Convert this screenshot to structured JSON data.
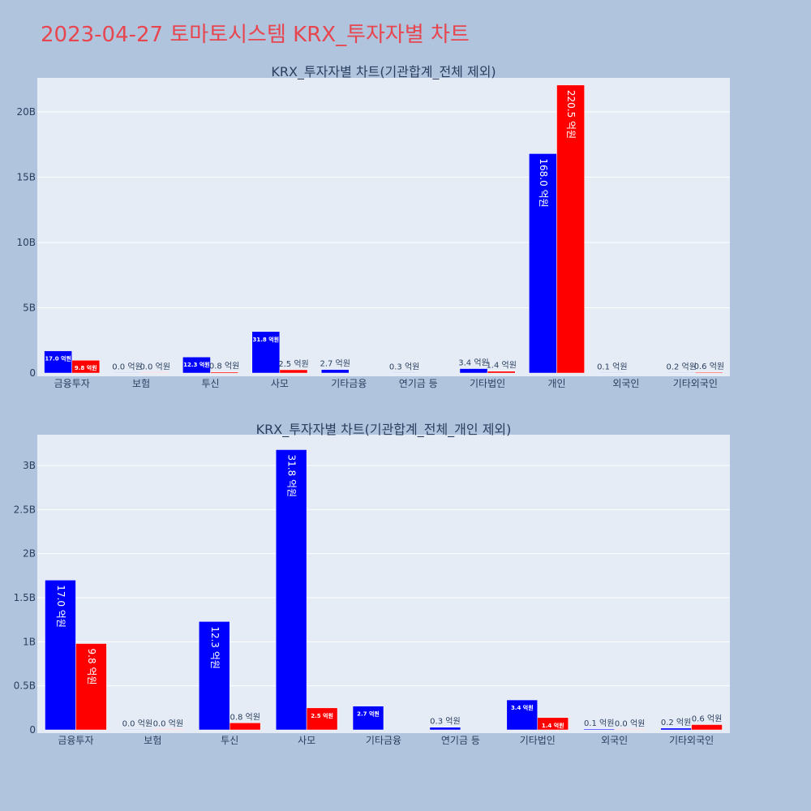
{
  "page_title": "2023-04-27 토마토시스템 KRX_투자자별 차트",
  "colors": {
    "series1": "#0000ff",
    "series2": "#ff0000",
    "plot_bg": "#e5ecf6",
    "title": "#e8464f"
  },
  "chart_data": [
    {
      "type": "bar",
      "title": "KRX_투자자별 차트(기관합계_전체 제외)",
      "categories": [
        "금융투자",
        "보험",
        "투신",
        "사모",
        "기타금융",
        "연기금 등",
        "기타법인",
        "개인",
        "외국인",
        "기타외국인"
      ],
      "series": [
        {
          "color": "#0000ff",
          "values": [
            1.7,
            0.0,
            1.23,
            3.18,
            0.27,
            0.03,
            0.34,
            16.8,
            0.01,
            0.02
          ],
          "labels": [
            "17.0 억원",
            "0.0 억원",
            "12.3 억원",
            "31.8 억원",
            "2.7 억원",
            "0.3 억원",
            "3.4 억원",
            "168.0 억원",
            "0.1 억원",
            "0.2 억원"
          ]
        },
        {
          "color": "#ff0000",
          "values": [
            0.98,
            0.0,
            0.08,
            0.25,
            null,
            null,
            0.14,
            22.05,
            null,
            0.06
          ],
          "labels": [
            "9.8 억원",
            "0.0 억원",
            "0.8 억원",
            "2.5 억원",
            "",
            "",
            "1.4 억원",
            "220.5 억원",
            "",
            "0.6 억원"
          ]
        }
      ],
      "yticks": [
        0,
        5,
        10,
        15,
        20
      ],
      "ytick_labels": [
        "0",
        "5B",
        "10B",
        "15B",
        "20B"
      ],
      "ylim": [
        0,
        22.6
      ],
      "grid": true
    },
    {
      "type": "bar",
      "title": "KRX_투자자별 차트(기관합계_전체_개인 제외)",
      "categories": [
        "금융투자",
        "보험",
        "투신",
        "사모",
        "기타금융",
        "연기금 등",
        "기타법인",
        "외국인",
        "기타외국인"
      ],
      "series": [
        {
          "color": "#0000ff",
          "values": [
            1.7,
            0.0,
            1.23,
            3.18,
            0.27,
            0.03,
            0.34,
            0.01,
            0.02
          ],
          "labels": [
            "17.0 억원",
            "0.0 억원",
            "12.3 억원",
            "31.8 억원",
            "2.7 억원",
            "0.3 억원",
            "3.4 억원",
            "0.1 억원",
            "0.2 억원"
          ]
        },
        {
          "color": "#ff0000",
          "values": [
            0.98,
            0.0,
            0.08,
            0.25,
            null,
            null,
            0.14,
            0.0,
            0.06
          ],
          "labels": [
            "9.8 억원",
            "0.0 억원",
            "0.8 억원",
            "2.5 억원",
            "",
            "",
            "1.4 억원",
            "0.0 억원",
            "0.6 억원"
          ]
        }
      ],
      "yticks": [
        0,
        0.5,
        1,
        1.5,
        2,
        2.5,
        3
      ],
      "ytick_labels": [
        "0",
        "0.5B",
        "1B",
        "1.5B",
        "2B",
        "2.5B",
        "3B"
      ],
      "ylim": [
        0,
        3.35
      ],
      "grid": true
    }
  ]
}
